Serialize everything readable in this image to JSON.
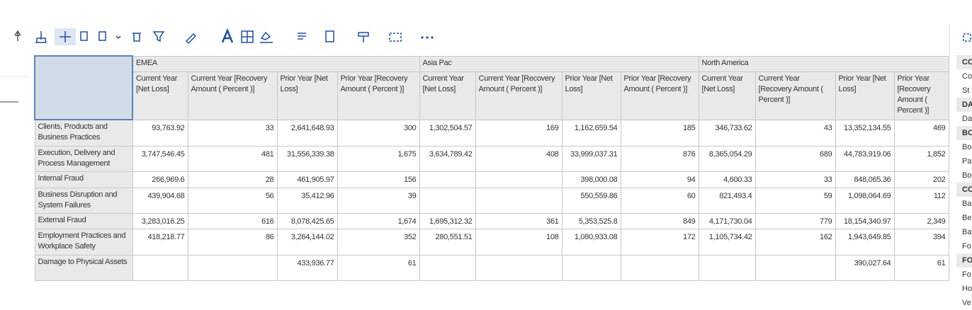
{
  "table": {
    "corner": "",
    "regions": [
      "EMEA",
      "Asia Pac",
      "North America"
    ],
    "columns": [
      "Current Year [Net Loss]",
      "Current Year [Recovery Amount ( Percent )]",
      "Prior Year [Net Loss]",
      "Prior Year [Recovery Amount ( Percent )]"
    ],
    "rows": [
      {
        "label": "Clients, Products and Business Practices",
        "cells": [
          "93,763.92",
          "33",
          "2,641,648.93",
          "300",
          "1,302,504.57",
          "169",
          "1,162,659.54",
          "185",
          "346,733.62",
          "43",
          "13,352,134.55",
          "469"
        ]
      },
      {
        "label": "Execution, Delivery and Process Management",
        "cells": [
          "3,747,546.45",
          "481",
          "31,556,339.38",
          "1,675",
          "3,634,789.42",
          "408",
          "33,999,037.31",
          "876",
          "8,365,054.29",
          "689",
          "44,783,919.06",
          "1,852"
        ]
      },
      {
        "label": "Internal Fraud",
        "cells": [
          "266,969.6",
          "28",
          "461,905.97",
          "156",
          null,
          null,
          "398,000.08",
          "94",
          "4,600.33",
          "33",
          "848,065.36",
          "202"
        ]
      },
      {
        "label": "Business Disruption and System Failures",
        "cells": [
          "439,904.68",
          "56",
          "35,412.96",
          "39",
          null,
          null,
          "550,559.86",
          "60",
          "821,493.4",
          "59",
          "1,098,064.69",
          "112"
        ]
      },
      {
        "label": "External Fraud",
        "cells": [
          "3,283,016.25",
          "616",
          "8,078,425.65",
          "1,674",
          "1,695,312.32",
          "361",
          "5,353,525.8",
          "849",
          "4,171,730.04",
          "779",
          "18,154,340.97",
          "2,349"
        ]
      },
      {
        "label": "Employment Practices and Workplace Safety",
        "cells": [
          "418,218.77",
          "86",
          "3,264,144.02",
          "352",
          "280,551.51",
          "108",
          "1,080,933.08",
          "172",
          "1,105,734.42",
          "162",
          "1,943,649.85",
          "394"
        ]
      },
      {
        "label": "Damage to Physical Assets",
        "cells": [
          null,
          null,
          "433,936.77",
          "61",
          null,
          null,
          null,
          null,
          null,
          null,
          "390,027.64",
          "61"
        ]
      }
    ]
  },
  "side_panel": {
    "groups": [
      {
        "heading": "CO",
        "items": [
          "Co",
          "St"
        ]
      },
      {
        "heading": "DA",
        "items": [
          "Da"
        ]
      },
      {
        "heading": "BO",
        "items": [
          "Bo",
          "Pa",
          "Bo"
        ]
      },
      {
        "heading": "CO",
        "items": [
          "Ba",
          "Be",
          "Ba",
          "Fo"
        ]
      },
      {
        "heading": "FO",
        "items": [
          "Fo",
          "Ho",
          "Ve"
        ]
      }
    ]
  }
}
